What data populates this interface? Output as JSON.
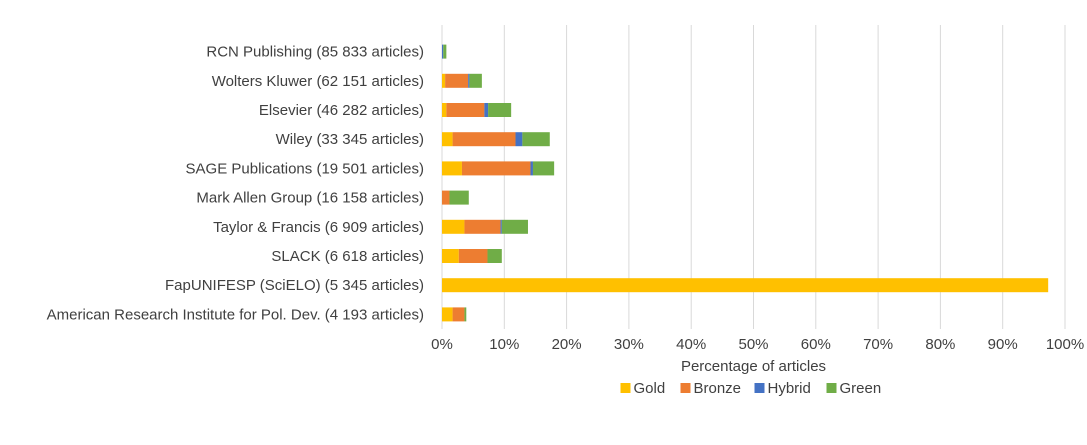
{
  "chart_data": {
    "type": "bar",
    "orientation": "horizontal",
    "stacked": true,
    "categories": [
      "RCN Publishing (85 833 articles)",
      "Wolters Kluwer (62 151 articles)",
      "Elsevier (46 282 articles)",
      "Wiley (33 345 articles)",
      "SAGE Publications (19 501 articles)",
      "Mark Allen Group (16 158 articles)",
      "Taylor & Francis (6 909 articles)",
      "SLACK (6 618 articles)",
      "FapUNIFESP (SciELO) (5 345 articles)",
      "American Research Institute for Pol. Dev. (4 193 articles)"
    ],
    "series": [
      {
        "name": "Gold",
        "color": "#FFC000",
        "values": [
          0.0,
          0.5,
          0.7,
          1.7,
          3.2,
          0.0,
          3.6,
          2.7,
          97.3,
          1.7
        ]
      },
      {
        "name": "Bronze",
        "color": "#ED7D31",
        "values": [
          0.0,
          3.7,
          6.1,
          10.1,
          11.0,
          1.2,
          5.8,
          4.6,
          0.0,
          1.9
        ]
      },
      {
        "name": "Hybrid",
        "color": "#4472C4",
        "values": [
          0.2,
          0.2,
          0.6,
          1.1,
          0.4,
          0.0,
          0.2,
          0.0,
          0.0,
          0.0
        ]
      },
      {
        "name": "Green",
        "color": "#70AD47",
        "values": [
          0.5,
          2.0,
          3.7,
          4.4,
          3.4,
          3.1,
          4.2,
          2.3,
          0.0,
          0.3
        ]
      }
    ],
    "xlabel": "Percentage of articles",
    "ylabel": "",
    "xlim": [
      0,
      100
    ],
    "xticks": [
      "0%",
      "10%",
      "20%",
      "30%",
      "40%",
      "50%",
      "60%",
      "70%",
      "80%",
      "90%",
      "100%"
    ],
    "grid": true,
    "legend_position": "bottom"
  }
}
